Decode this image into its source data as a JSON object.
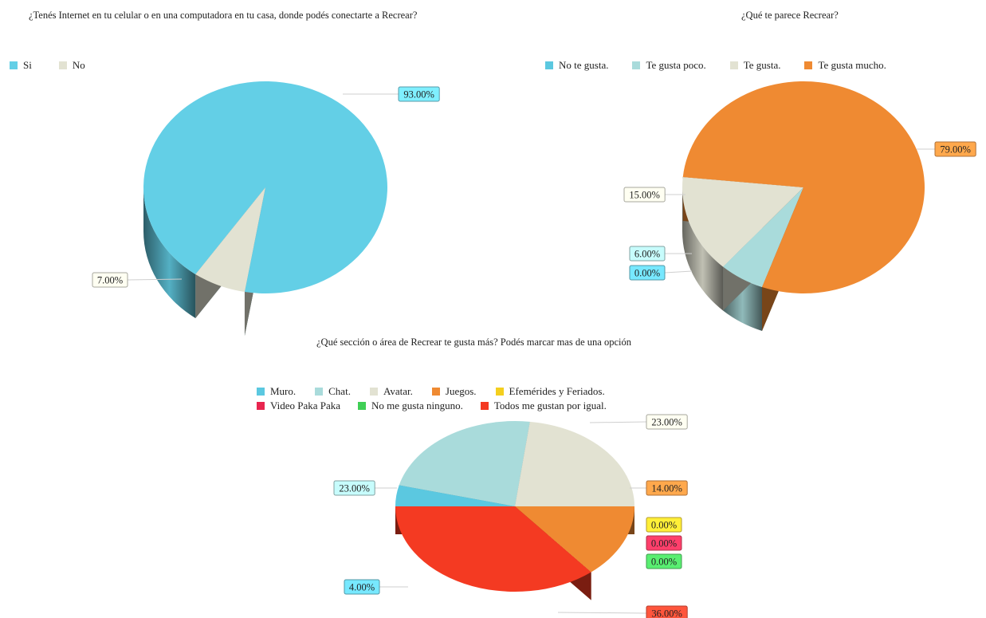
{
  "chart_data": [
    {
      "type": "pie",
      "title": "¿Tenés Internet en tu celular o en una computadora en tu casa, donde podés conectarte a Recrear?",
      "categories": [
        "Si",
        "No"
      ],
      "values": [
        93.0,
        7.0
      ],
      "value_labels": [
        "93.00%",
        "7.00%"
      ],
      "colors": [
        "#63cfe6",
        "#e2e2d2"
      ],
      "legend_position": "top-left"
    },
    {
      "type": "pie",
      "title": "¿Qué te parece Recrear?",
      "categories": [
        "No te gusta.",
        "Te gusta poco.",
        "Te gusta.",
        "Te gusta mucho."
      ],
      "values": [
        0.0,
        6.0,
        15.0,
        79.0
      ],
      "value_labels": [
        "0.00%",
        "6.00%",
        "15.00%",
        "79.00%"
      ],
      "colors": [
        "#5bc8e0",
        "#a9dbdb",
        "#e2e2d2",
        "#ef8a32"
      ],
      "legend_position": "top"
    },
    {
      "type": "pie",
      "title": "¿Qué sección o área de Recrear te gusta más? Podés marcar mas de una opción",
      "categories": [
        "Muro.",
        "Chat.",
        "Avatar.",
        "Juegos.",
        "Efemérides y Feriados.",
        "Video Paka Paka",
        "No me gusta ninguno.",
        "Todos me gustan por igual."
      ],
      "values": [
        4.0,
        23.0,
        23.0,
        14.0,
        0.0,
        0.0,
        0.0,
        36.0
      ],
      "value_labels": [
        "4.00%",
        "23.00%",
        "23.00%",
        "14.00%",
        "0.00%",
        "0.00%",
        "0.00%",
        "36.00%"
      ],
      "colors": [
        "#5bc8e0",
        "#a9dbdb",
        "#e2e2d2",
        "#ef8a32",
        "#f4cf1e",
        "#e8254f",
        "#3fcf55",
        "#f43a22"
      ],
      "legend_position": "top"
    }
  ]
}
